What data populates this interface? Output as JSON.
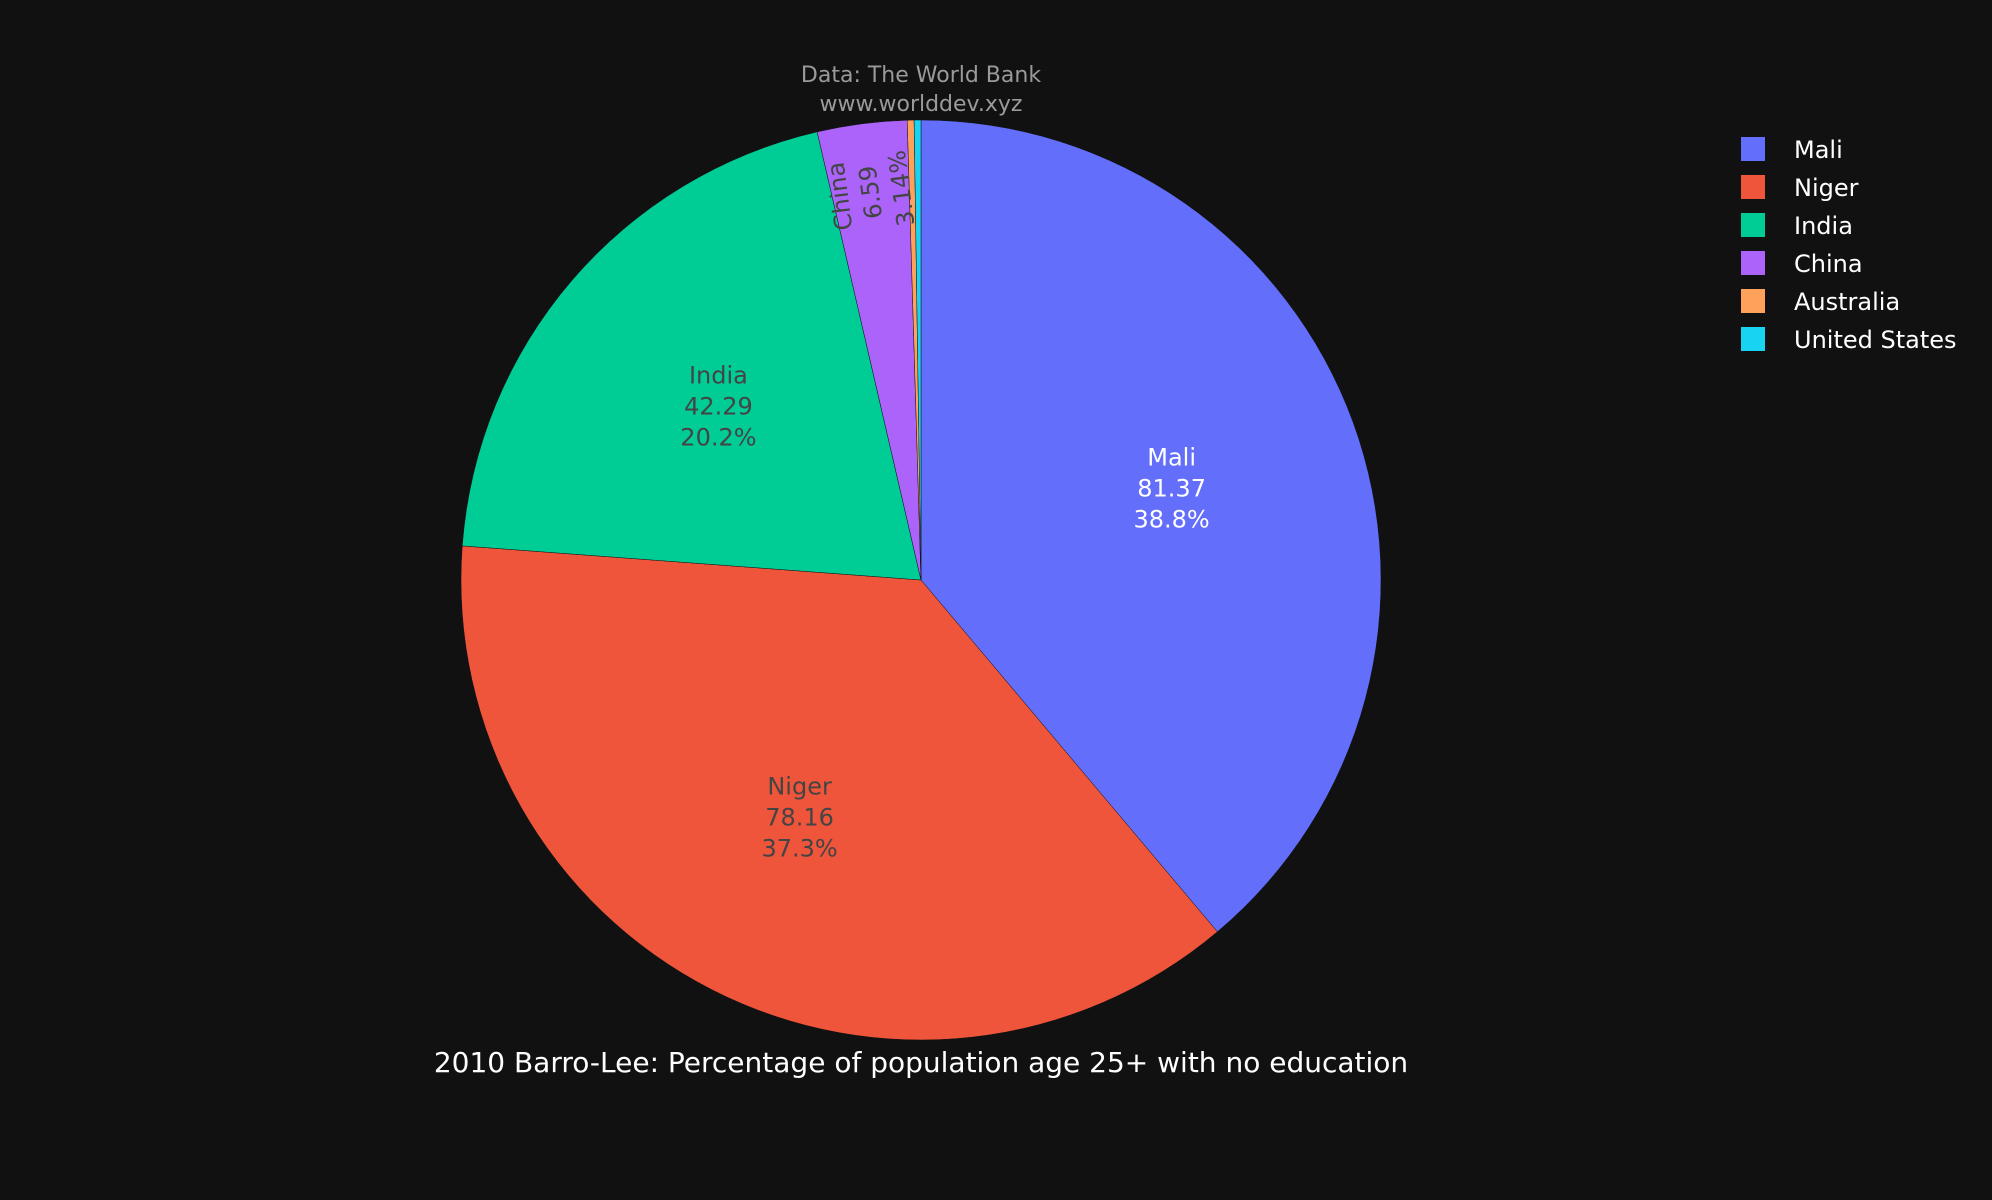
{
  "source": {
    "line1": "Data: The World Bank",
    "line2": "www.worlddev.xyz"
  },
  "chart_data": {
    "type": "pie",
    "title": "2010 Barro-Lee: Percentage of population age 25+ with no education",
    "categories": [
      "Mali",
      "Niger",
      "India",
      "China",
      "Australia",
      "United States"
    ],
    "values": [
      81.37,
      78.16,
      42.29,
      6.59,
      0.5,
      0.5
    ],
    "percent_labels": [
      "38.8%",
      "37.3%",
      "20.2%",
      "3.14%",
      "",
      ""
    ],
    "value_labels": [
      "81.37",
      "78.16",
      "42.29",
      "6.59",
      "",
      ""
    ],
    "colors": [
      "#636efa",
      "#ef553b",
      "#00cc96",
      "#ab63fa",
      "#ffa15a",
      "#19d3f3"
    ],
    "label_colors": [
      "#ffffff",
      "#444444",
      "#444444",
      "#444444",
      "#444444",
      "#444444"
    ],
    "show_inside_label": [
      true,
      true,
      true,
      true,
      false,
      false
    ],
    "legend_placement": "top-right",
    "direction": "clockwise",
    "start_angle": "12 o'clock"
  }
}
